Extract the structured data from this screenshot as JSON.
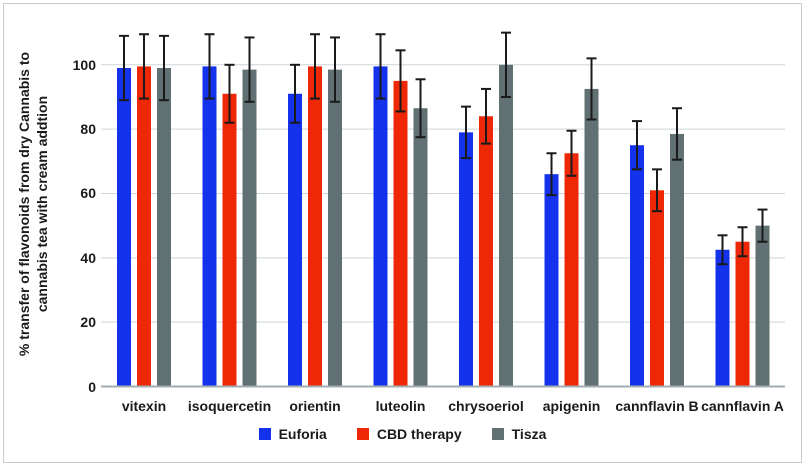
{
  "frame": {
    "border_color": "#c2ccd2",
    "background": "#ffffff"
  },
  "chart_data": {
    "type": "bar",
    "title": "",
    "xlabel": "",
    "ylabel": "% transfer of flavonoids from dry Cannabis to cannabis tea with cream addtion",
    "ylabel_lines": [
      "% transfer of flavonoids from dry Cannabis to",
      "cannabis tea with cream addtion"
    ],
    "categories": [
      "vitexin",
      "isoquercetin",
      "orientin",
      "luteolin",
      "chrysoeriol",
      "apigenin",
      "cannflavin B",
      "cannflavin A"
    ],
    "series": [
      {
        "name": "Euforia",
        "color": "#1432ec",
        "values": [
          99,
          99.5,
          91,
          99.5,
          79,
          66,
          75,
          42.5
        ],
        "errors": [
          10,
          10,
          9,
          10,
          8,
          6.5,
          7.5,
          4.5
        ]
      },
      {
        "name": "CBD therapy",
        "color": "#ee2806",
        "values": [
          99.5,
          91,
          99.5,
          95,
          84,
          72.5,
          61,
          45
        ],
        "errors": [
          10,
          9,
          10,
          9.5,
          8.5,
          7,
          6.5,
          4.5
        ]
      },
      {
        "name": "Tisza",
        "color": "#617072",
        "values": [
          99,
          98.5,
          98.5,
          86.5,
          100,
          92.5,
          78.5,
          50
        ],
        "errors": [
          10,
          10,
          10,
          9,
          10,
          9.5,
          8,
          5
        ]
      }
    ],
    "y_ticks": [
      0,
      20,
      40,
      60,
      80,
      100
    ],
    "ylim": [
      0,
      112
    ],
    "grid": true,
    "error_bars": true,
    "legend_position": "bottom",
    "colors": {
      "gridline": "#cdd5d8",
      "axis_line": "#a3adb1",
      "error_bar": "#1a1a1a",
      "text": "#1a1a1a"
    }
  }
}
